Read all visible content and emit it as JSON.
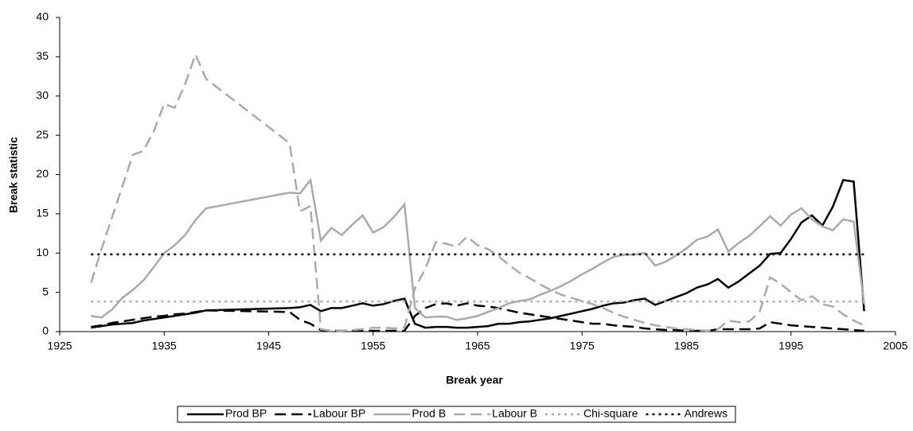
{
  "chart_data": {
    "type": "line",
    "xlabel": "Break year",
    "ylabel": "Break statistic",
    "xlim": [
      1925,
      2005
    ],
    "xticks": [
      1925,
      1935,
      1945,
      1955,
      1965,
      1975,
      1985,
      1995,
      2005
    ],
    "ylim": [
      0,
      40
    ],
    "yticks": [
      0,
      5,
      10,
      15,
      20,
      25,
      30,
      35,
      40
    ],
    "grid": false,
    "legend": "bottom",
    "x": [
      1928,
      1929,
      1930,
      1931,
      1932,
      1933,
      1934,
      1935,
      1936,
      1937,
      1938,
      1939,
      1947,
      1948,
      1949,
      1950,
      1951,
      1952,
      1953,
      1954,
      1955,
      1956,
      1957,
      1958,
      1959,
      1960,
      1961,
      1962,
      1963,
      1964,
      1965,
      1966,
      1967,
      1968,
      1969,
      1970,
      1971,
      1972,
      1973,
      1974,
      1975,
      1976,
      1977,
      1978,
      1979,
      1980,
      1981,
      1982,
      1983,
      1984,
      1985,
      1986,
      1987,
      1988,
      1989,
      1990,
      1991,
      1992,
      1993,
      1994,
      1995,
      1996,
      1997,
      1998,
      1999,
      2000,
      2001,
      2002
    ],
    "series": [
      {
        "name": "Prod BP",
        "color": "#000000",
        "dash": "solid",
        "values": [
          0.5,
          0.7,
          0.9,
          1.0,
          1.1,
          1.4,
          1.6,
          1.8,
          2.0,
          2.2,
          2.4,
          2.7,
          3.0,
          3.1,
          3.4,
          2.6,
          3.0,
          3.0,
          3.3,
          3.6,
          3.3,
          3.5,
          3.9,
          4.2,
          1.0,
          0.5,
          0.6,
          0.6,
          0.5,
          0.5,
          0.6,
          0.7,
          1.0,
          1.0,
          1.2,
          1.3,
          1.5,
          1.7,
          2.0,
          2.3,
          2.6,
          2.9,
          3.3,
          3.6,
          3.7,
          4.0,
          4.2,
          3.4,
          3.9,
          4.4,
          4.9,
          5.6,
          6.0,
          6.7,
          5.6,
          6.4,
          7.4,
          8.4,
          9.9,
          10.0,
          11.8,
          13.9,
          14.8,
          13.5,
          15.9,
          19.3,
          19.1,
          2.6
        ]
      },
      {
        "name": "Labour BP",
        "color": "#000000",
        "dash": "dashed",
        "values": [
          0.6,
          0.8,
          1.1,
          1.3,
          1.5,
          1.7,
          1.9,
          2.0,
          2.2,
          2.3,
          2.5,
          2.7,
          2.5,
          1.5,
          1.0,
          0.2,
          0.1,
          0.1,
          0.1,
          0.1,
          0.1,
          0.1,
          0.1,
          0.1,
          2.0,
          3.0,
          3.5,
          3.6,
          3.3,
          3.6,
          3.3,
          3.2,
          3.0,
          2.7,
          2.4,
          2.2,
          2.0,
          1.8,
          1.6,
          1.4,
          1.2,
          1.0,
          1.0,
          0.8,
          0.7,
          0.6,
          0.4,
          0.3,
          0.2,
          0.2,
          0.1,
          0.1,
          0.1,
          0.3,
          0.3,
          0.3,
          0.3,
          0.4,
          1.2,
          1.0,
          0.8,
          0.7,
          0.6,
          0.5,
          0.4,
          0.3,
          0.2,
          0.1
        ]
      },
      {
        "name": "Prod B",
        "color": "#aaaaaa",
        "dash": "solid",
        "values": [
          2.0,
          1.8,
          2.8,
          4.3,
          5.3,
          6.5,
          8.2,
          10.0,
          11.0,
          12.3,
          14.2,
          15.7,
          17.7,
          17.6,
          19.3,
          11.6,
          13.2,
          12.3,
          13.6,
          14.8,
          12.6,
          13.3,
          14.6,
          16.2,
          3.0,
          1.8,
          1.9,
          1.9,
          1.5,
          1.7,
          2.0,
          2.5,
          3.0,
          3.6,
          3.9,
          4.1,
          4.7,
          5.2,
          5.8,
          6.5,
          7.3,
          8.0,
          8.8,
          9.5,
          9.8,
          9.8,
          10.0,
          8.4,
          8.9,
          9.7,
          10.6,
          11.7,
          12.1,
          13.0,
          10.2,
          11.3,
          12.2,
          13.4,
          14.7,
          13.5,
          14.9,
          15.7,
          14.3,
          13.4,
          12.9,
          14.3,
          14.0,
          3.5
        ]
      },
      {
        "name": "Labour B",
        "color": "#aaaaaa",
        "dash": "dashed",
        "values": [
          6.2,
          10.5,
          14.5,
          18.5,
          22.5,
          23.0,
          25.5,
          29.0,
          28.5,
          31.5,
          35.3,
          32.2,
          24.0,
          15.3,
          16.0,
          0.3,
          0.1,
          0.1,
          0.2,
          0.3,
          0.5,
          0.5,
          0.4,
          0.5,
          5.5,
          8.0,
          11.4,
          11.2,
          10.8,
          12.1,
          11.0,
          10.5,
          9.6,
          8.5,
          7.5,
          6.8,
          6.0,
          5.3,
          4.7,
          4.3,
          3.9,
          3.5,
          3.0,
          2.4,
          1.9,
          1.5,
          1.1,
          0.8,
          0.6,
          0.4,
          0.3,
          0.2,
          0.1,
          0.3,
          1.4,
          1.2,
          1.3,
          2.5,
          6.9,
          6.1,
          5.0,
          4.0,
          4.5,
          3.5,
          3.2,
          2.2,
          1.4,
          0.8
        ]
      },
      {
        "name": "Chi-square",
        "color": "#aaaaaa",
        "dash": "dotted",
        "values": [
          3.84,
          3.84,
          3.84,
          3.84,
          3.84,
          3.84,
          3.84,
          3.84,
          3.84,
          3.84,
          3.84,
          3.84,
          3.84,
          3.84,
          3.84,
          3.84,
          3.84,
          3.84,
          3.84,
          3.84,
          3.84,
          3.84,
          3.84,
          3.84,
          3.84,
          3.84,
          3.84,
          3.84,
          3.84,
          3.84,
          3.84,
          3.84,
          3.84,
          3.84,
          3.84,
          3.84,
          3.84,
          3.84,
          3.84,
          3.84,
          3.84,
          3.84,
          3.84,
          3.84,
          3.84,
          3.84,
          3.84,
          3.84,
          3.84,
          3.84,
          3.84,
          3.84,
          3.84,
          3.84,
          3.84,
          3.84,
          3.84,
          3.84,
          3.84,
          3.84,
          3.84,
          3.84,
          3.84,
          3.84,
          3.84,
          3.84,
          3.84,
          3.84
        ]
      },
      {
        "name": "Andrews",
        "color": "#000000",
        "dash": "dotted",
        "values": [
          9.84,
          9.84,
          9.84,
          9.84,
          9.84,
          9.84,
          9.84,
          9.84,
          9.84,
          9.84,
          9.84,
          9.84,
          9.84,
          9.84,
          9.84,
          9.84,
          9.84,
          9.84,
          9.84,
          9.84,
          9.84,
          9.84,
          9.84,
          9.84,
          9.84,
          9.84,
          9.84,
          9.84,
          9.84,
          9.84,
          9.84,
          9.84,
          9.84,
          9.84,
          9.84,
          9.84,
          9.84,
          9.84,
          9.84,
          9.84,
          9.84,
          9.84,
          9.84,
          9.84,
          9.84,
          9.84,
          9.84,
          9.84,
          9.84,
          9.84,
          9.84,
          9.84,
          9.84,
          9.84,
          9.84,
          9.84,
          9.84,
          9.84,
          9.84,
          9.84,
          9.84,
          9.84,
          9.84,
          9.84,
          9.84,
          9.84,
          9.84,
          9.84
        ]
      }
    ]
  }
}
